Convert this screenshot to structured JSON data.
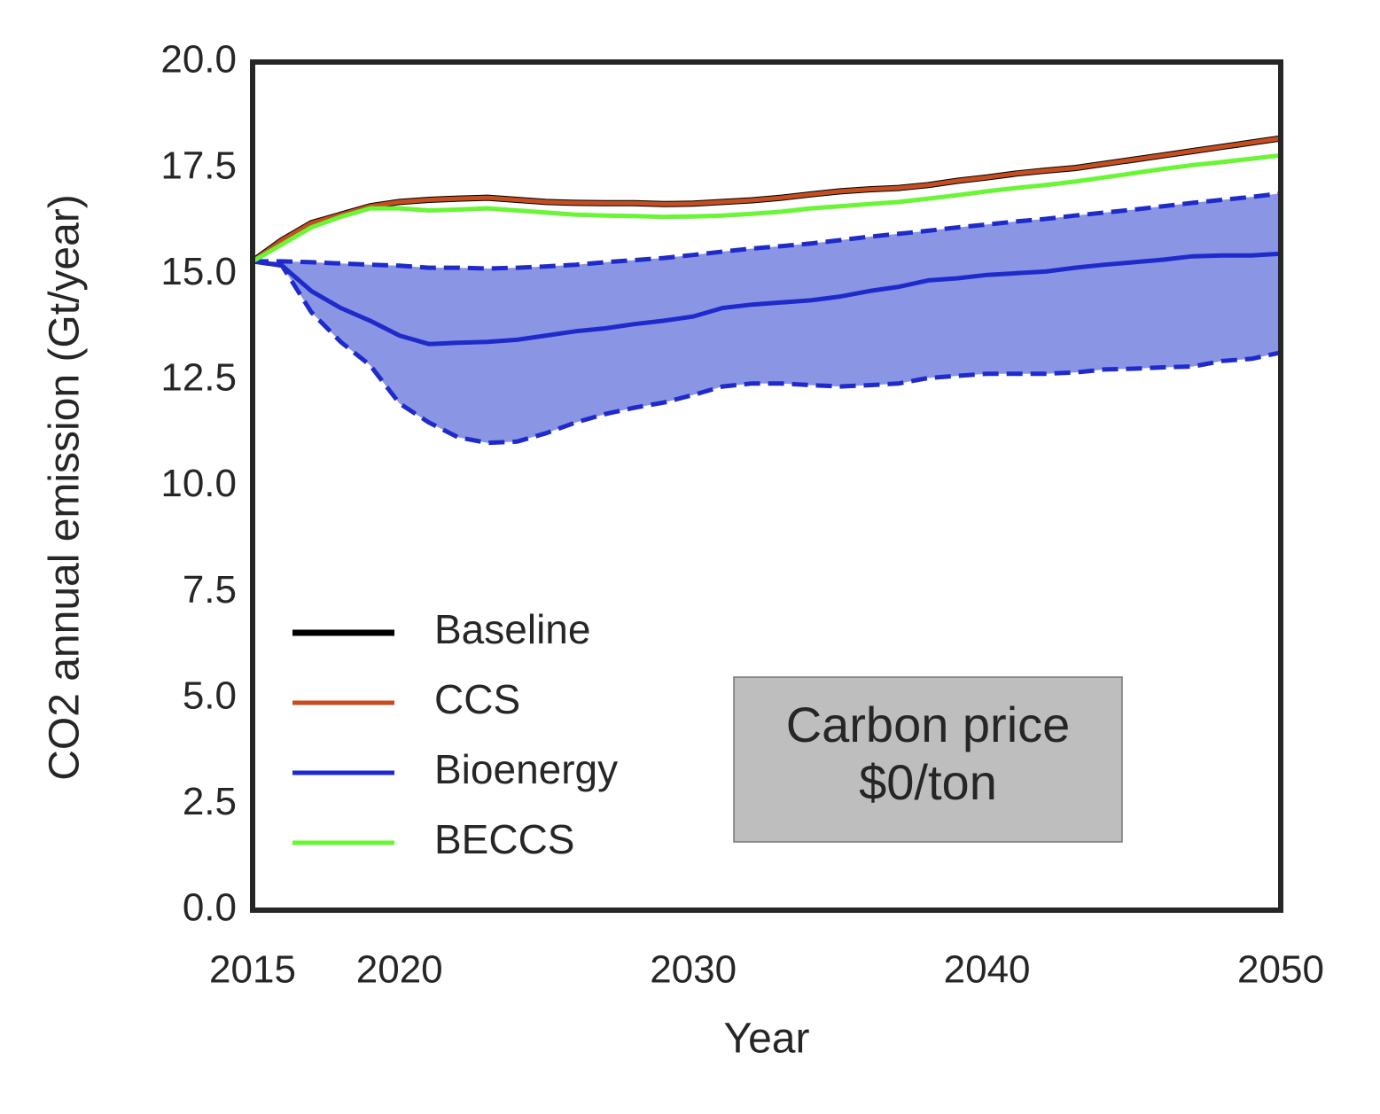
{
  "chart_data": {
    "type": "line",
    "xlabel": "Year",
    "ylabel": "CO2 annual emission (Gt/year)",
    "x": [
      2015,
      2016,
      2017,
      2018,
      2019,
      2020,
      2021,
      2022,
      2023,
      2024,
      2025,
      2026,
      2027,
      2028,
      2029,
      2030,
      2031,
      2032,
      2033,
      2034,
      2035,
      2036,
      2037,
      2038,
      2039,
      2040,
      2041,
      2042,
      2043,
      2044,
      2045,
      2046,
      2047,
      2048,
      2049,
      2050
    ],
    "series": [
      {
        "name": "Baseline",
        "color": "#000000",
        "values": [
          15.3,
          15.8,
          16.2,
          16.4,
          16.6,
          16.7,
          16.75,
          16.78,
          16.8,
          16.75,
          16.7,
          16.68,
          16.67,
          16.67,
          16.65,
          16.66,
          16.7,
          16.74,
          16.8,
          16.88,
          16.95,
          17.0,
          17.03,
          17.1,
          17.2,
          17.28,
          17.37,
          17.44,
          17.5,
          17.6,
          17.7,
          17.8,
          17.9,
          18.0,
          18.1,
          18.2
        ]
      },
      {
        "name": "CCS",
        "color": "#c44e20",
        "values": [
          15.3,
          15.8,
          16.2,
          16.4,
          16.6,
          16.7,
          16.75,
          16.78,
          16.8,
          16.75,
          16.7,
          16.68,
          16.67,
          16.67,
          16.65,
          16.66,
          16.7,
          16.74,
          16.8,
          16.88,
          16.95,
          17.0,
          17.03,
          17.1,
          17.2,
          17.28,
          17.37,
          17.44,
          17.5,
          17.6,
          17.7,
          17.8,
          17.9,
          18.0,
          18.1,
          18.2
        ]
      },
      {
        "name": "Bioenergy",
        "color": "#1f2acb",
        "band_color": "#8a95e4",
        "values": [
          15.3,
          15.2,
          14.6,
          14.2,
          13.9,
          13.55,
          13.35,
          13.38,
          13.4,
          13.45,
          13.55,
          13.65,
          13.72,
          13.82,
          13.9,
          14.0,
          14.2,
          14.28,
          14.33,
          14.38,
          14.47,
          14.6,
          14.7,
          14.85,
          14.9,
          14.98,
          15.02,
          15.06,
          15.15,
          15.22,
          15.28,
          15.34,
          15.42,
          15.44,
          15.44,
          15.48
        ],
        "upper": [
          15.3,
          15.3,
          15.28,
          15.25,
          15.22,
          15.2,
          15.15,
          15.15,
          15.13,
          15.15,
          15.18,
          15.22,
          15.28,
          15.33,
          15.38,
          15.45,
          15.53,
          15.6,
          15.66,
          15.72,
          15.8,
          15.88,
          15.95,
          16.02,
          16.1,
          16.17,
          16.24,
          16.3,
          16.38,
          16.45,
          16.52,
          16.6,
          16.68,
          16.75,
          16.82,
          16.9
        ],
        "lower": [
          15.3,
          15.2,
          14.1,
          13.4,
          12.85,
          11.95,
          11.5,
          11.15,
          11.02,
          11.05,
          11.25,
          11.5,
          11.7,
          11.85,
          11.97,
          12.15,
          12.35,
          12.42,
          12.42,
          12.38,
          12.35,
          12.38,
          12.42,
          12.55,
          12.6,
          12.65,
          12.65,
          12.65,
          12.68,
          12.75,
          12.77,
          12.8,
          12.82,
          12.95,
          13.0,
          13.15
        ]
      },
      {
        "name": "BECCS",
        "color": "#6af535",
        "values": [
          15.3,
          15.7,
          16.1,
          16.35,
          16.55,
          16.55,
          16.5,
          16.52,
          16.55,
          16.5,
          16.45,
          16.4,
          16.38,
          16.37,
          16.35,
          16.36,
          16.38,
          16.42,
          16.47,
          16.55,
          16.6,
          16.65,
          16.7,
          16.78,
          16.86,
          16.95,
          17.03,
          17.1,
          17.18,
          17.28,
          17.38,
          17.48,
          17.57,
          17.64,
          17.72,
          17.8
        ]
      }
    ],
    "xlim": [
      2015,
      2050
    ],
    "xticks": [
      2015,
      2020,
      2030,
      2040,
      2050
    ],
    "ylim": [
      0,
      20
    ],
    "yticks": [
      {
        "value": 0,
        "label": "0.0"
      },
      2.5,
      {
        "value": 5,
        "label": "5.0"
      },
      7.5,
      {
        "value": 10,
        "label": "10.0"
      },
      12.5,
      {
        "value": 15,
        "label": "15.0"
      },
      17.5,
      {
        "value": 20,
        "label": "20.0"
      }
    ],
    "legend": "lower left",
    "annotation": [
      "Carbon price",
      "$0/ton"
    ]
  }
}
